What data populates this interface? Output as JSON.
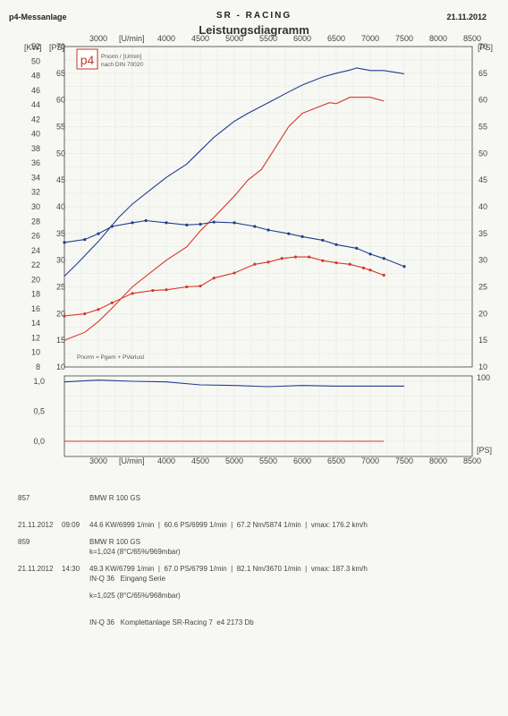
{
  "header": {
    "left": "p4-Messanlage",
    "center": "SR - RACING",
    "right": "21.11.2012"
  },
  "title": "Leistungsdiagramm",
  "legend_box": {
    "logo": "p4",
    "line1": "Pnorm / [U/min]",
    "line2": "nach DIN 70020"
  },
  "formula": "Pnorm = Pgem + PVerlust",
  "axes": {
    "left_kw_label": "[KW]",
    "left_ps_label": "[PS]",
    "right_ps_label": "[PS]",
    "rpm_label": "[U/min]",
    "kw_ticks": [
      "8",
      "10",
      "12",
      "14",
      "16",
      "18",
      "20",
      "22",
      "24",
      "26",
      "28",
      "30",
      "32",
      "34",
      "36",
      "38",
      "40",
      "42",
      "44",
      "46",
      "48",
      "50",
      "52"
    ],
    "ps_ticks": [
      "10",
      "15",
      "20",
      "25",
      "30",
      "35",
      "40",
      "45",
      "50",
      "55",
      "60",
      "65",
      "70"
    ],
    "rpm_top_ticks": [
      "3000",
      "4000",
      "4500",
      "5000",
      "5500",
      "6000",
      "6500",
      "7000",
      "7500",
      "8000",
      "8500"
    ],
    "rpm_bottom_ticks": [
      "3000",
      "4000",
      "4500",
      "5000",
      "5500",
      "6000",
      "6500",
      "7000",
      "7500",
      "8000",
      "8500"
    ],
    "lower_left_ticks": [
      "1,0",
      "0,5",
      "0,0"
    ],
    "lower_right_ticks": [
      "100",
      "[PS]"
    ]
  },
  "colors": {
    "run1": "#d43a2a",
    "run2": "#1f3f8c",
    "grid": "#9ec49e",
    "frame": "#444444"
  },
  "chart_data": {
    "type": "line",
    "x_unit": "U/min",
    "xlim": [
      2500,
      8500
    ],
    "ps_ylim": [
      10,
      70
    ],
    "kw_ylim": [
      8,
      52
    ],
    "series": [
      {
        "name": "857",
        "kind": "power_ps",
        "color": "#d43a2a",
        "x": [
          2500,
          2800,
          3000,
          3200,
          3500,
          3800,
          4000,
          4300,
          4500,
          4700,
          5000,
          5200,
          5400,
          5600,
          5800,
          6000,
          6200,
          6400,
          6500,
          6700,
          6900,
          7000,
          7200
        ],
        "y": [
          15,
          16.5,
          18.5,
          21,
          25,
          28,
          30,
          32.5,
          35.5,
          38,
          42,
          45,
          47,
          51,
          55,
          57.5,
          58.5,
          59.5,
          59.3,
          60.5,
          60.5,
          60.5,
          59.8
        ]
      },
      {
        "name": "859",
        "kind": "power_ps",
        "color": "#1f3f8c",
        "x": [
          2500,
          2700,
          3000,
          3300,
          3500,
          3800,
          4000,
          4300,
          4500,
          4700,
          5000,
          5200,
          5500,
          5800,
          6000,
          6300,
          6500,
          6700,
          6800,
          7000,
          7200,
          7500
        ],
        "y": [
          27,
          29.5,
          33.5,
          38,
          40.5,
          43.5,
          45.5,
          48,
          50.5,
          53,
          56,
          57.5,
          59.5,
          61.5,
          62.8,
          64.3,
          65,
          65.6,
          66,
          65.5,
          65.5,
          64.9
        ]
      },
      {
        "name": "857",
        "kind": "torque_kw",
        "color": "#d43a2a",
        "x": [
          2500,
          2800,
          3000,
          3200,
          3500,
          3800,
          4000,
          4300,
          4500,
          4700,
          5000,
          5300,
          5500,
          5700,
          5900,
          6100,
          6300,
          6500,
          6700,
          6900,
          7000,
          7200
        ],
        "y": [
          15,
          15.3,
          15.9,
          16.8,
          18.1,
          18.5,
          18.6,
          19,
          19.1,
          20.2,
          20.9,
          22.1,
          22.4,
          22.9,
          23.1,
          23.1,
          22.6,
          22.3,
          22.1,
          21.6,
          21.3,
          20.6
        ]
      },
      {
        "name": "859",
        "kind": "torque_kw",
        "color": "#1f3f8c",
        "x": [
          2500,
          2800,
          3000,
          3200,
          3500,
          3700,
          4000,
          4300,
          4500,
          4700,
          5000,
          5300,
          5500,
          5800,
          6000,
          6300,
          6500,
          6800,
          7000,
          7200,
          7500
        ],
        "y": [
          25.1,
          25.5,
          26.3,
          27.3,
          27.8,
          28.1,
          27.8,
          27.5,
          27.6,
          27.9,
          27.8,
          27.3,
          26.8,
          26.3,
          25.9,
          25.4,
          24.8,
          24.3,
          23.5,
          22.9,
          21.8
        ]
      },
      {
        "name": "859",
        "kind": "lambda",
        "color": "#1f3f8c",
        "x": [
          2500,
          3000,
          3500,
          4000,
          4500,
          5000,
          5500,
          6000,
          6500,
          7000,
          7500
        ],
        "y": [
          0.99,
          1.02,
          1.0,
          0.99,
          0.94,
          0.93,
          0.91,
          0.93,
          0.92,
          0.92,
          0.92
        ]
      },
      {
        "name": "857",
        "kind": "lambda",
        "color": "#d43a2a",
        "x": [
          2500,
          7200
        ],
        "y": [
          0.0,
          0.0
        ]
      }
    ]
  },
  "runs": [
    {
      "id": "857",
      "model": "BMW R 100 GS",
      "date": "21.11.2012",
      "time": "09:09",
      "stats": "44.6 KW/6999 1/min  |  60.6 PS/6999 1/min  |  67.2 Nm/5874 1/min  |  vmax: 176.2 km/h",
      "factor": "k=1,024 (8°C/65%/969mbar)",
      "note": "IN-Q 36   Eingang Serie"
    },
    {
      "id": "859",
      "model": "BMW R 100 GS",
      "date": "21.11.2012",
      "time": "14:30",
      "stats": "49.3 KW/6799 1/min  |  67.0 PS/6799 1/min  |  82.1 Nm/3670 1/min  |  vmax: 187.3 km/h",
      "factor": "k=1,025 (8°C/65%/968mbar)",
      "note": "IN-Q 36   Komplettanlage SR-Racing 7  e4 2173 Db"
    }
  ]
}
